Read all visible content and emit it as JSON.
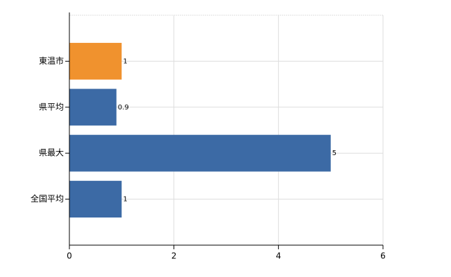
{
  "chart_data": {
    "type": "bar",
    "orientation": "horizontal",
    "categories": [
      "東温市",
      "県平均",
      "県最大",
      "全国平均"
    ],
    "values": [
      1,
      0.9,
      5,
      1
    ],
    "colors": [
      "#f0922e",
      "#3c6aa5",
      "#3c6aa5",
      "#3c6aa5"
    ],
    "xlim": [
      0,
      6
    ],
    "xticks": [
      0,
      2,
      4,
      6
    ],
    "grid": true
  }
}
